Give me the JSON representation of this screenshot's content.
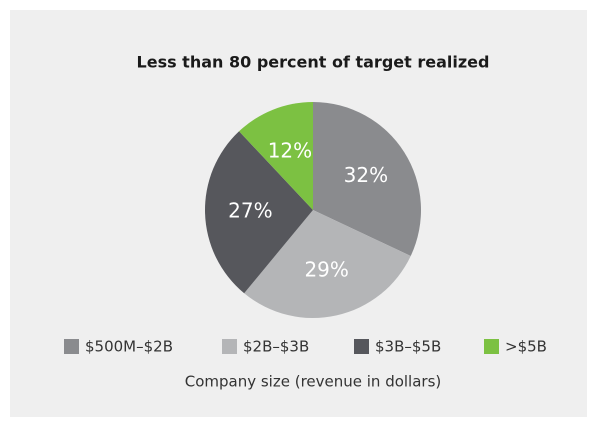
{
  "chart_data": {
    "type": "pie",
    "title": "Less than 80 percent of target realized",
    "categories": [
      "$500M–$2B",
      "$2B–$3B",
      "$3B–$5B",
      ">$5B"
    ],
    "values": [
      32,
      29,
      27,
      12
    ],
    "value_labels": [
      "32%",
      "29%",
      "27%",
      "12%"
    ],
    "colors": [
      "#8a8b8e",
      "#b4b5b7",
      "#56575c",
      "#7cc142"
    ],
    "x_label": "Company size (revenue in dollars)"
  }
}
